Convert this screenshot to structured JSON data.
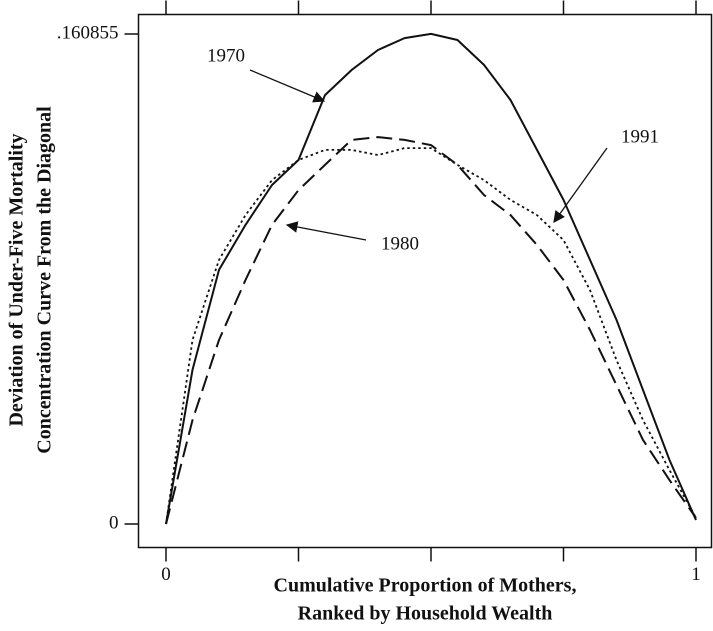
{
  "chart_data": {
    "type": "line",
    "ylabel": [
      "Deviation of Under-Five Mortality",
      "Concentration Curve From the Diagonal"
    ],
    "xlabel": [
      "Cumulative Proportion of Mothers,",
      "Ranked by Household Wealth"
    ],
    "x": [
      0,
      0.05,
      0.1,
      0.15,
      0.2,
      0.25,
      0.3,
      0.35,
      0.4,
      0.45,
      0.5,
      0.55,
      0.6,
      0.65,
      0.7,
      0.75,
      0.8,
      0.85,
      0.9,
      0.95,
      1
    ],
    "series": [
      {
        "name": "1970",
        "color": "#111111",
        "dash": "solid",
        "values": [
          0,
          0.0506,
          0.0834,
          0.0982,
          0.1113,
          0.1195,
          0.1408,
          0.149,
          0.1556,
          0.1595,
          0.1609,
          0.1589,
          0.1507,
          0.1392,
          0.1228,
          0.1064,
          0.0867,
          0.067,
          0.044,
          0.021,
          0.0013
        ]
      },
      {
        "name": "1980",
        "color": "#111111",
        "dash": "dashed",
        "values": [
          0,
          0.0341,
          0.0604,
          0.0801,
          0.0982,
          0.1096,
          0.1179,
          0.1261,
          0.127,
          0.1261,
          0.1244,
          0.1179,
          0.108,
          0.1014,
          0.0916,
          0.0801,
          0.0637,
          0.0456,
          0.0276,
          0.0144,
          0.002
        ]
      },
      {
        "name": "1991",
        "color": "#111111",
        "dash": "dotted",
        "values": [
          0,
          0.0604,
          0.0867,
          0.1014,
          0.1129,
          0.1195,
          0.1228,
          0.1228,
          0.1211,
          0.1234,
          0.1234,
          0.1179,
          0.1129,
          0.1064,
          0.1014,
          0.0932,
          0.0768,
          0.0538,
          0.0341,
          0.0177,
          0.002
        ]
      }
    ],
    "xlim": [
      0,
      1
    ],
    "ylim": [
      0,
      0.160855
    ],
    "xticks": [
      0,
      {
        "value": 0.25,
        "label": null
      },
      {
        "value": 0.5,
        "label": null
      },
      {
        "value": 0.75,
        "label": null
      },
      1
    ],
    "yticks": [
      0,
      {
        "value": 0.160855,
        "label": ".160855"
      }
    ],
    "grid": false
  }
}
